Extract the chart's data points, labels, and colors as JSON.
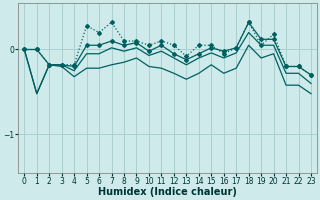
{
  "xlabel": "Humidex (Indice chaleur)",
  "background_color": "#ceeaea",
  "grid_color": "#aacfcf",
  "line_color": "#006060",
  "xlim": [
    -0.5,
    23.5
  ],
  "ylim": [
    -1.45,
    0.55
  ],
  "xticks": [
    0,
    1,
    2,
    3,
    4,
    5,
    6,
    7,
    8,
    9,
    10,
    11,
    12,
    13,
    14,
    15,
    16,
    17,
    18,
    19,
    20,
    21,
    22,
    23
  ],
  "yticks": [
    -1,
    0
  ],
  "series": [
    [
      0.0,
      0.0,
      -0.18,
      -0.18,
      -0.18,
      0.28,
      0.2,
      0.32,
      0.1,
      0.1,
      0.05,
      0.1,
      0.05,
      -0.08,
      0.05,
      0.05,
      -0.05,
      0.02,
      0.32,
      0.05,
      0.18,
      -0.2,
      -0.2,
      -0.3
    ],
    [
      0.0,
      0.0,
      -0.18,
      -0.18,
      -0.2,
      0.05,
      0.05,
      0.1,
      0.05,
      0.08,
      -0.02,
      0.05,
      -0.05,
      -0.12,
      -0.05,
      0.02,
      -0.02,
      0.02,
      0.32,
      0.12,
      0.12,
      -0.2,
      -0.2,
      -0.3
    ],
    [
      0.0,
      -0.52,
      -0.18,
      -0.18,
      -0.25,
      -0.05,
      -0.05,
      0.02,
      -0.02,
      0.02,
      -0.07,
      -0.02,
      -0.1,
      -0.18,
      -0.1,
      -0.04,
      -0.1,
      -0.04,
      0.2,
      0.05,
      0.05,
      -0.28,
      -0.28,
      -0.4
    ],
    [
      0.0,
      -0.52,
      -0.18,
      -0.2,
      -0.32,
      -0.22,
      -0.22,
      -0.18,
      -0.15,
      -0.1,
      -0.2,
      -0.22,
      -0.28,
      -0.35,
      -0.28,
      -0.18,
      -0.28,
      -0.22,
      0.05,
      -0.1,
      -0.05,
      -0.42,
      -0.42,
      -0.52
    ]
  ],
  "styles": [
    "dotted",
    "solid",
    "solid",
    "solid"
  ],
  "has_markers": [
    true,
    true,
    false,
    false
  ],
  "marker": "D",
  "markersize": 2.0,
  "linewidth": 0.9,
  "xlabel_fontsize": 7,
  "tick_fontsize": 5.5
}
